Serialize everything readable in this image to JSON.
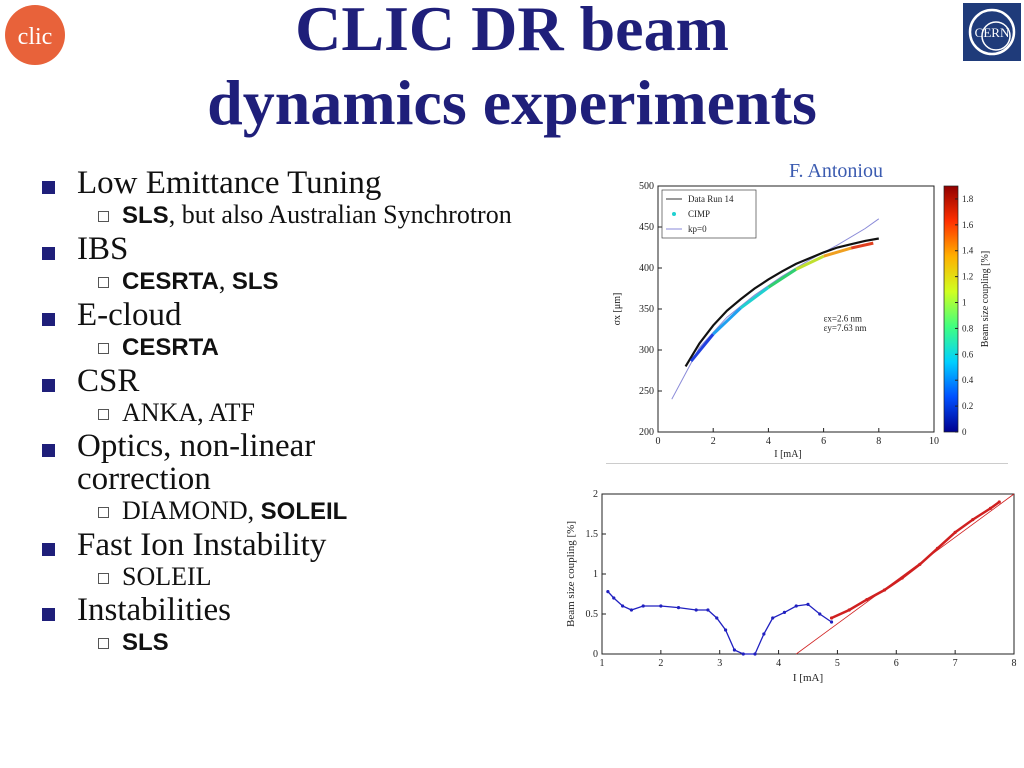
{
  "title_line1": "CLIC DR beam",
  "title_line2": "dynamics experiments",
  "credit": "F. Antoniou",
  "logos": {
    "left": "CLIC logo",
    "right": "CERN logo",
    "clic_text": "clic",
    "cern_text": "CERN"
  },
  "bullets": [
    {
      "text": "Low Emittance Tuning"
    },
    {
      "text": "IBS"
    },
    {
      "text": "E-cloud"
    },
    {
      "text": "CSR"
    },
    {
      "text": "Optics, non-linear correction"
    },
    {
      "text": "Fast Ion Instability"
    },
    {
      "text": "Instabilities"
    }
  ],
  "sub": {
    "let_bold": "SLS",
    "let_rest": ", but also Australian Synchrotron",
    "ibs_bold1": "CESRTA",
    "ibs_sep": ", ",
    "ibs_bold2": "SLS",
    "ecloud_bold": "CESRTA",
    "csr_text": "ANKA, ATF",
    "optics_text": "DIAMOND, ",
    "optics_bold": "SOLEIL",
    "fii_text": "SOLEIL",
    "inst_bold": "SLS"
  },
  "chart_data": [
    {
      "type": "scatter",
      "xlabel": "I [mA]",
      "ylabel": "σx [μm]",
      "xlim": [
        0,
        10
      ],
      "ylim": [
        200,
        500
      ],
      "xticks": [
        "0",
        "2",
        "4",
        "6",
        "8",
        "10"
      ],
      "yticks": [
        "200",
        "250",
        "300",
        "350",
        "400",
        "450",
        "500"
      ],
      "legend": [
        "Data Run 14",
        "CIMP",
        "kp=0"
      ],
      "legend_placement": "top-left",
      "colorbar_label": "Beam size coupling [%]",
      "colorbar_ticks": [
        "0",
        "0.2",
        "0.4",
        "0.6",
        "0.8",
        "1",
        "1.2",
        "1.4",
        "1.6",
        "1.8"
      ],
      "annotation1": "εx=2.6 nm",
      "annotation2": "εy=7.63 nm",
      "series": [
        {
          "name": "Data Run 14",
          "x": [
            1.0,
            1.5,
            2.0,
            2.5,
            3.0,
            3.5,
            4.0,
            4.5,
            5.0,
            5.5,
            6.0,
            6.5,
            7.0,
            7.5,
            8.0
          ],
          "y": [
            280,
            308,
            330,
            348,
            362,
            375,
            386,
            396,
            405,
            412,
            419,
            425,
            429,
            433,
            436
          ]
        },
        {
          "name": "CIMP",
          "x": [
            1.2,
            2.0,
            3.0,
            4.0,
            5.0,
            6.0,
            7.0,
            7.8
          ],
          "y": [
            290,
            323,
            355,
            380,
            402,
            418,
            428,
            434
          ]
        },
        {
          "name": "kp=0",
          "x": [
            0.5,
            1.5,
            2.5,
            3.5,
            4.5,
            5.5,
            6.5,
            7.5,
            8.0
          ],
          "y": [
            240,
            303,
            340,
            367,
            390,
            410,
            428,
            448,
            460
          ]
        }
      ]
    },
    {
      "type": "scatter",
      "xlabel": "I [mA]",
      "ylabel": "Beam size coupling [%]",
      "xlim": [
        1,
        8
      ],
      "ylim": [
        0,
        2
      ],
      "xticks": [
        "1",
        "2",
        "3",
        "4",
        "5",
        "6",
        "7",
        "8"
      ],
      "yticks": [
        "0",
        "0.5",
        "1",
        "1.5",
        "2"
      ],
      "series": [
        {
          "name": "",
          "color": "#2020c0",
          "x": [
            1.1,
            1.2,
            1.35,
            1.5,
            1.7,
            2.0,
            2.3,
            2.6,
            2.8,
            2.95,
            3.1,
            3.25,
            3.4,
            3.6,
            3.75,
            3.9,
            4.1,
            4.3,
            4.5,
            4.7,
            4.9
          ],
          "y": [
            0.78,
            0.7,
            0.6,
            0.55,
            0.6,
            0.6,
            0.58,
            0.55,
            0.55,
            0.45,
            0.3,
            0.05,
            0.0,
            0.0,
            0.25,
            0.45,
            0.52,
            0.6,
            0.62,
            0.5,
            0.4
          ]
        },
        {
          "name": "",
          "color": "#d02020",
          "x": [
            4.9,
            5.2,
            5.5,
            5.8,
            6.1,
            6.4,
            6.7,
            7.0,
            7.3,
            7.6,
            7.75
          ],
          "y": [
            0.45,
            0.55,
            0.68,
            0.8,
            0.95,
            1.12,
            1.32,
            1.52,
            1.68,
            1.82,
            1.9
          ]
        },
        {
          "name": "",
          "color": "#d02020",
          "x": [
            4.3,
            8.0
          ],
          "y": [
            0.0,
            2.0
          ]
        }
      ]
    }
  ]
}
